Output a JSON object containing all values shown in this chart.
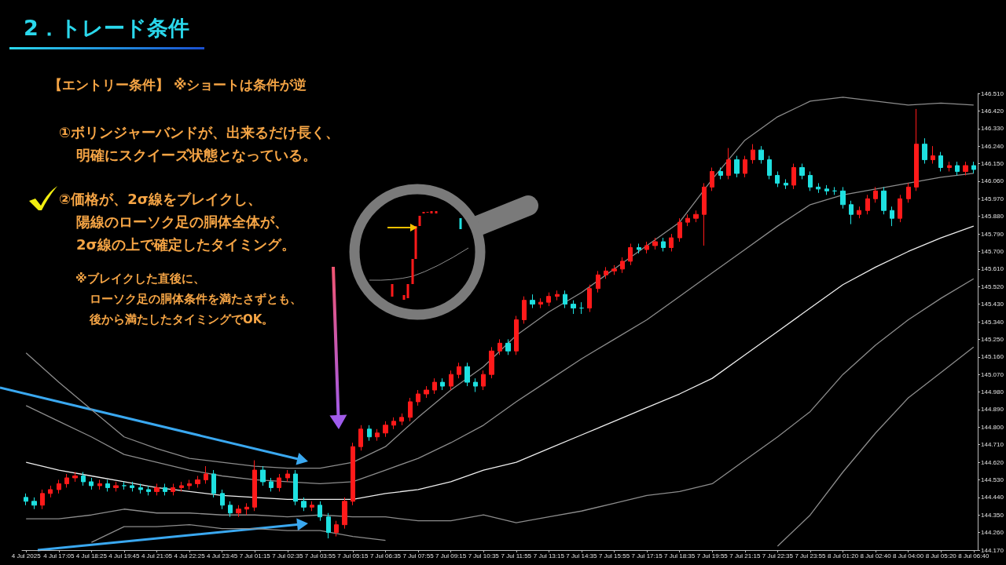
{
  "chart_data": {
    "type": "candlestick",
    "title": "2．トレード条件",
    "annotations": [
      "【エントリー条件】 ※ショートは条件が逆",
      "①ボリンジャーバンドが、出来るだけ長く、明確にスクイーズ状態となっている。",
      "②価格が、2σ線をブレイクし、陽線のローソク足の胴体全体が、2σ線の上で確定したタイミング。",
      "※ブレイクした直後に、ローソク足の胴体条件を満たさずとも、後から満たしたタイミングでOK。"
    ],
    "categories": [
      "4 Jul 2025",
      null,
      null,
      null,
      "4 Jul 17:05",
      null,
      null,
      null,
      "4 Jul 18:25",
      null,
      null,
      null,
      "4 Jul 19:45",
      null,
      null,
      null,
      "4 Jul 21:05",
      null,
      null,
      null,
      "4 Jul 22:25",
      null,
      null,
      null,
      "4 Jul 23:45",
      null,
      null,
      null,
      "7 Jul 01:15",
      null,
      null,
      null,
      "7 Jul 02:35",
      null,
      null,
      null,
      "7 Jul 03:55",
      null,
      null,
      null,
      "7 Jul 05:15",
      null,
      null,
      null,
      "7 Jul 06:35",
      null,
      null,
      null,
      "7 Jul 07:55",
      null,
      null,
      null,
      "7 Jul 09:15",
      null,
      null,
      null,
      "7 Jul 10:35",
      null,
      null,
      null,
      "7 Jul 11:55",
      null,
      null,
      null,
      "7 Jul 13:15",
      null,
      null,
      null,
      "7 Jul 14:35",
      null,
      null,
      null,
      "7 Jul 15:55",
      null,
      null,
      null,
      "7 Jul 17:15",
      null,
      null,
      null,
      "7 Jul 18:35",
      null,
      null,
      null,
      "7 Jul 19:55",
      null,
      null,
      null,
      "7 Jul 21:15",
      null,
      null,
      null,
      "7 Jul 22:35",
      null,
      null,
      null,
      "7 Jul 23:55",
      null,
      null,
      null,
      "8 Jul 01:20",
      null,
      null,
      null,
      "8 Jul 02:40",
      null,
      null,
      null,
      "8 Jul 04:00",
      null,
      null,
      null,
      "8 Jul 05:20",
      null,
      null,
      null,
      "8 Jul 06:40"
    ],
    "series": [
      {
        "ohlc": [
          [
            144.44,
            144.46,
            144.4,
            144.42
          ],
          [
            144.42,
            144.44,
            144.38,
            144.4
          ],
          [
            144.4,
            144.48,
            144.38,
            144.46
          ],
          [
            144.46,
            144.5,
            144.44,
            144.48
          ],
          [
            144.48,
            144.53,
            144.46,
            144.51
          ],
          [
            144.51,
            144.56,
            144.49,
            144.54
          ],
          [
            144.54,
            144.57,
            144.52,
            144.55
          ],
          [
            144.55,
            144.57,
            144.5,
            144.52
          ],
          [
            144.52,
            144.54,
            144.48,
            144.5
          ],
          [
            144.5,
            144.53,
            144.48,
            144.51
          ],
          [
            144.51,
            144.53,
            144.47,
            144.49
          ],
          [
            144.49,
            144.52,
            144.47,
            144.5
          ],
          [
            144.5,
            144.52,
            144.48,
            144.5
          ],
          [
            144.5,
            144.52,
            144.47,
            144.49
          ],
          [
            144.49,
            144.51,
            144.46,
            144.48
          ],
          [
            144.48,
            144.5,
            144.45,
            144.47
          ],
          [
            144.47,
            144.51,
            144.45,
            144.49
          ],
          [
            144.49,
            144.51,
            144.45,
            144.47
          ],
          [
            144.47,
            144.51,
            144.45,
            144.49
          ],
          [
            144.49,
            144.52,
            144.47,
            144.5
          ],
          [
            144.5,
            144.53,
            144.48,
            144.51
          ],
          [
            144.51,
            144.55,
            144.49,
            144.53
          ],
          [
            144.53,
            144.6,
            144.51,
            144.56
          ],
          [
            144.56,
            144.58,
            144.44,
            144.46
          ],
          [
            144.46,
            144.48,
            144.38,
            144.4
          ],
          [
            144.4,
            144.42,
            144.34,
            144.36
          ],
          [
            144.36,
            144.4,
            144.34,
            144.38
          ],
          [
            144.38,
            144.41,
            144.35,
            144.39
          ],
          [
            144.39,
            144.63,
            144.37,
            144.58
          ],
          [
            144.58,
            144.6,
            144.5,
            144.52
          ],
          [
            144.52,
            144.54,
            144.47,
            144.49
          ],
          [
            144.49,
            144.56,
            144.47,
            144.54
          ],
          [
            144.54,
            144.58,
            144.52,
            144.56
          ],
          [
            144.56,
            144.58,
            144.4,
            144.42
          ],
          [
            144.42,
            144.44,
            144.37,
            144.39
          ],
          [
            144.39,
            144.42,
            144.37,
            144.4
          ],
          [
            144.4,
            144.42,
            144.32,
            144.34
          ],
          [
            144.34,
            144.36,
            144.23,
            144.26
          ],
          [
            144.26,
            144.32,
            144.24,
            144.3
          ],
          [
            144.3,
            144.44,
            144.28,
            144.42
          ],
          [
            144.42,
            144.72,
            144.4,
            144.7
          ],
          [
            144.7,
            144.81,
            144.68,
            144.79
          ],
          [
            144.79,
            144.81,
            144.73,
            144.75
          ],
          [
            144.75,
            144.79,
            144.73,
            144.77
          ],
          [
            144.77,
            144.83,
            144.75,
            144.81
          ],
          [
            144.81,
            144.85,
            144.79,
            144.83
          ],
          [
            144.83,
            144.87,
            144.81,
            144.85
          ],
          [
            144.85,
            144.95,
            144.83,
            144.93
          ],
          [
            144.93,
            144.99,
            144.91,
            144.97
          ],
          [
            144.97,
            145.01,
            144.95,
            144.99
          ],
          [
            144.99,
            145.05,
            144.97,
            145.03
          ],
          [
            145.03,
            145.05,
            144.99,
            145.01
          ],
          [
            145.01,
            145.09,
            144.99,
            145.07
          ],
          [
            145.07,
            145.13,
            145.05,
            145.11
          ],
          [
            145.11,
            145.13,
            145.01,
            145.03
          ],
          [
            145.03,
            145.05,
            144.98,
            145.01
          ],
          [
            145.01,
            145.09,
            144.99,
            145.07
          ],
          [
            145.07,
            145.21,
            145.05,
            145.19
          ],
          [
            145.19,
            145.25,
            145.17,
            145.23
          ],
          [
            145.23,
            145.25,
            145.17,
            145.19
          ],
          [
            145.19,
            145.37,
            145.17,
            145.35
          ],
          [
            145.35,
            145.47,
            145.33,
            145.45
          ],
          [
            145.45,
            145.48,
            145.41,
            145.43
          ],
          [
            145.43,
            145.46,
            145.41,
            145.44
          ],
          [
            145.44,
            145.49,
            145.42,
            145.47
          ],
          [
            145.47,
            145.5,
            145.45,
            145.48
          ],
          [
            145.48,
            145.5,
            145.41,
            145.43
          ],
          [
            145.43,
            145.45,
            145.38,
            145.41
          ],
          [
            145.41,
            145.44,
            145.38,
            145.41
          ],
          [
            145.41,
            145.53,
            145.39,
            145.51
          ],
          [
            145.51,
            145.6,
            145.49,
            145.58
          ],
          [
            145.58,
            145.62,
            145.56,
            145.6
          ],
          [
            145.6,
            145.63,
            145.58,
            145.61
          ],
          [
            145.61,
            145.67,
            145.59,
            145.65
          ],
          [
            145.65,
            145.74,
            145.63,
            145.72
          ],
          [
            145.72,
            145.74,
            145.69,
            145.71
          ],
          [
            145.71,
            145.75,
            145.69,
            145.73
          ],
          [
            145.73,
            145.77,
            145.71,
            145.75
          ],
          [
            145.75,
            145.77,
            145.7,
            145.72
          ],
          [
            145.72,
            145.79,
            145.7,
            145.77
          ],
          [
            145.77,
            145.87,
            145.75,
            145.85
          ],
          [
            145.85,
            145.89,
            145.83,
            145.87
          ],
          [
            145.87,
            145.91,
            145.85,
            145.89
          ],
          [
            145.89,
            146.05,
            145.73,
            146.03
          ],
          [
            146.03,
            146.13,
            146.01,
            146.11
          ],
          [
            146.11,
            146.13,
            146.07,
            146.09
          ],
          [
            146.09,
            146.23,
            146.07,
            146.17
          ],
          [
            146.17,
            146.19,
            146.08,
            146.1
          ],
          [
            146.1,
            146.19,
            146.08,
            146.17
          ],
          [
            146.17,
            146.25,
            146.15,
            146.22
          ],
          [
            146.22,
            146.24,
            146.15,
            146.17
          ],
          [
            146.17,
            146.19,
            146.07,
            146.09
          ],
          [
            146.09,
            146.11,
            146.03,
            146.05
          ],
          [
            146.05,
            146.07,
            146.02,
            146.04
          ],
          [
            146.04,
            146.15,
            146.02,
            146.13
          ],
          [
            146.13,
            146.15,
            146.07,
            146.09
          ],
          [
            146.09,
            146.11,
            146.01,
            146.03
          ],
          [
            146.03,
            146.05,
            146.0,
            146.02
          ],
          [
            146.02,
            146.04,
            145.99,
            146.01
          ],
          [
            146.01,
            146.03,
            145.99,
            146.01
          ],
          [
            146.01,
            146.03,
            145.92,
            145.94
          ],
          [
            145.94,
            145.96,
            145.84,
            145.89
          ],
          [
            145.89,
            145.93,
            145.87,
            145.91
          ],
          [
            145.91,
            145.99,
            145.89,
            145.97
          ],
          [
            145.97,
            146.03,
            145.95,
            146.01
          ],
          [
            146.01,
            146.03,
            145.89,
            145.91
          ],
          [
            145.91,
            145.93,
            145.83,
            145.87
          ],
          [
            145.87,
            145.99,
            145.85,
            145.97
          ],
          [
            145.97,
            146.05,
            145.95,
            146.03
          ],
          [
            146.03,
            146.43,
            146.01,
            146.25
          ],
          [
            146.25,
            146.28,
            146.15,
            146.17
          ],
          [
            146.17,
            146.24,
            146.15,
            146.19
          ],
          [
            146.19,
            146.21,
            146.11,
            146.13
          ],
          [
            146.13,
            146.16,
            146.11,
            146.14
          ],
          [
            146.14,
            146.16,
            146.09,
            146.11
          ],
          [
            146.11,
            146.16,
            146.09,
            146.14
          ],
          [
            146.14,
            146.16,
            146.1,
            146.12
          ]
        ],
        "colors": [
          "#1ee0e0",
          "#1ee0e0",
          "#ff1a1a",
          "#ff1a1a",
          "#ff1a1a",
          "#ff1a1a",
          "#ff1a1a",
          "#1ee0e0",
          "#1ee0e0",
          "#ff1a1a",
          "#1ee0e0",
          "#ff1a1a",
          "#1ee0e0",
          "#1ee0e0",
          "#1ee0e0",
          "#1ee0e0",
          "#ff1a1a",
          "#1ee0e0",
          "#ff1a1a",
          "#ff1a1a",
          "#ff1a1a",
          "#ff1a1a",
          "#ff1a1a",
          "#1ee0e0",
          "#1ee0e0",
          "#1ee0e0",
          "#ff1a1a",
          "#ff1a1a",
          "#ff1a1a",
          "#1ee0e0",
          "#1ee0e0",
          "#ff1a1a",
          "#ff1a1a",
          "#1ee0e0",
          "#1ee0e0",
          "#ff1a1a",
          "#1ee0e0",
          "#1ee0e0",
          "#ff1a1a",
          "#ff1a1a",
          "#ff1a1a",
          "#ff1a1a",
          "#1ee0e0",
          "#ff1a1a",
          "#ff1a1a",
          "#ff1a1a",
          "#ff1a1a",
          "#ff1a1a",
          "#ff1a1a",
          "#ff1a1a",
          "#ff1a1a",
          "#1ee0e0",
          "#ff1a1a",
          "#ff1a1a",
          "#1ee0e0",
          "#1ee0e0",
          "#ff1a1a",
          "#ff1a1a",
          "#ff1a1a",
          "#1ee0e0",
          "#ff1a1a",
          "#ff1a1a",
          "#1ee0e0",
          "#ff1a1a",
          "#ff1a1a",
          "#ff1a1a",
          "#1ee0e0",
          "#1ee0e0",
          "#1ee0e0",
          "#ff1a1a",
          "#ff1a1a",
          "#ff1a1a",
          "#ff1a1a",
          "#ff1a1a",
          "#ff1a1a",
          "#1ee0e0",
          "#ff1a1a",
          "#ff1a1a",
          "#1ee0e0",
          "#ff1a1a",
          "#ff1a1a",
          "#ff1a1a",
          "#ff1a1a",
          "#ff1a1a",
          "#ff1a1a",
          "#1ee0e0",
          "#ff1a1a",
          "#1ee0e0",
          "#ff1a1a",
          "#ff1a1a",
          "#1ee0e0",
          "#1ee0e0",
          "#1ee0e0",
          "#1ee0e0",
          "#ff1a1a",
          "#1ee0e0",
          "#1ee0e0",
          "#1ee0e0",
          "#1ee0e0",
          "#1ee0e0",
          "#1ee0e0",
          "#1ee0e0",
          "#ff1a1a",
          "#ff1a1a",
          "#ff1a1a",
          "#1ee0e0",
          "#1ee0e0",
          "#ff1a1a",
          "#ff1a1a",
          "#ff1a1a",
          "#1ee0e0",
          "#ff1a1a",
          "#1ee0e0",
          "#ff1a1a",
          "#1ee0e0",
          "#ff1a1a",
          "#1ee0e0"
        ]
      },
      {
        "type": "line",
        "color": "#8c8c8c",
        "x": [
          "4 Jul 2025",
          "4 Jul 17:05",
          "4 Jul 18:25",
          "4 Jul 19:45",
          "4 Jul 21:05",
          "4 Jul 22:25",
          "4 Jul 23:45",
          "7 Jul 01:15",
          "7 Jul 02:35",
          "7 Jul 03:55",
          "7 Jul 05:15",
          "7 Jul 06:35",
          "7 Jul 07:55",
          "7 Jul 09:15",
          "7 Jul 10:35",
          "7 Jul 11:55",
          "7 Jul 13:15",
          "7 Jul 14:35",
          "7 Jul 15:55",
          "7 Jul 17:15",
          "7 Jul 18:35",
          "7 Jul 19:55",
          "7 Jul 21:15",
          "7 Jul 22:35",
          "7 Jul 23:55",
          "8 Jul 01:20",
          "8 Jul 02:40",
          "8 Jul 04:00",
          "8 Jul 05:20",
          "8 Jul 06:40"
        ],
        "values": [
          145.18,
          145.03,
          144.89,
          144.75,
          144.69,
          144.64,
          144.62,
          144.6,
          144.59,
          144.59,
          144.62,
          144.7,
          144.85,
          144.99,
          145.11,
          145.27,
          145.39,
          145.49,
          145.61,
          145.73,
          145.85,
          146.07,
          146.27,
          146.39,
          146.47,
          146.49,
          146.47,
          146.45,
          146.46,
          146.45
        ]
      },
      {
        "type": "line",
        "color": "#8c8c8c",
        "x": [
          "4 Jul 2025",
          "4 Jul 17:05",
          "4 Jul 18:25",
          "4 Jul 19:45",
          "4 Jul 21:05",
          "4 Jul 22:25",
          "4 Jul 23:45",
          "7 Jul 01:15",
          "7 Jul 02:35",
          "7 Jul 03:55",
          "7 Jul 05:15",
          "7 Jul 06:35",
          "7 Jul 07:55",
          "7 Jul 09:15",
          "7 Jul 10:35",
          "7 Jul 11:55",
          "7 Jul 13:15",
          "7 Jul 14:35",
          "7 Jul 15:55",
          "7 Jul 17:15",
          "7 Jul 18:35",
          "7 Jul 19:55",
          "7 Jul 21:15",
          "7 Jul 22:35",
          "7 Jul 23:55",
          "8 Jul 01:20",
          "8 Jul 02:40",
          "8 Jul 04:00",
          "8 Jul 05:20",
          "8 Jul 06:40"
        ],
        "values": [
          144.91,
          144.83,
          144.75,
          144.66,
          144.62,
          144.58,
          144.55,
          144.53,
          144.52,
          144.51,
          144.52,
          144.58,
          144.64,
          144.72,
          144.81,
          144.93,
          145.04,
          145.15,
          145.25,
          145.35,
          145.47,
          145.59,
          145.71,
          145.83,
          145.94,
          145.99,
          146.02,
          146.05,
          146.08,
          146.1
        ]
      },
      {
        "type": "line",
        "color": "#eeeeee",
        "x": [
          "4 Jul 2025",
          "4 Jul 17:05",
          "4 Jul 18:25",
          "4 Jul 19:45",
          "4 Jul 21:05",
          "4 Jul 22:25",
          "4 Jul 23:45",
          "7 Jul 01:15",
          "7 Jul 02:35",
          "7 Jul 03:55",
          "7 Jul 05:15",
          "7 Jul 06:35",
          "7 Jul 07:55",
          "7 Jul 09:15",
          "7 Jul 10:35",
          "7 Jul 11:55",
          "7 Jul 13:15",
          "7 Jul 14:35",
          "7 Jul 15:55",
          "7 Jul 17:15",
          "7 Jul 18:35",
          "7 Jul 19:55",
          "7 Jul 21:15",
          "7 Jul 22:35",
          "7 Jul 23:55",
          "8 Jul 01:20",
          "8 Jul 02:40",
          "8 Jul 04:00",
          "8 Jul 05:20",
          "8 Jul 06:40"
        ],
        "values": [
          144.62,
          144.58,
          144.55,
          144.52,
          144.49,
          144.47,
          144.45,
          144.44,
          144.43,
          144.43,
          144.43,
          144.46,
          144.48,
          144.52,
          144.58,
          144.62,
          144.69,
          144.76,
          144.83,
          144.9,
          144.97,
          145.05,
          145.17,
          145.29,
          145.41,
          145.53,
          145.62,
          145.7,
          145.77,
          145.83
        ]
      },
      {
        "type": "line",
        "color": "#8c8c8c",
        "x": [
          "4 Jul 2025",
          "4 Jul 17:05",
          "4 Jul 18:25",
          "4 Jul 19:45",
          "4 Jul 21:05",
          "4 Jul 22:25",
          "4 Jul 23:45",
          "7 Jul 01:15",
          "7 Jul 02:35",
          "7 Jul 03:55",
          "7 Jul 05:15",
          "7 Jul 06:35",
          "7 Jul 07:55",
          "7 Jul 09:15",
          "7 Jul 10:35",
          "7 Jul 11:55",
          "7 Jul 13:15",
          "7 Jul 14:35",
          "7 Jul 15:55",
          "7 Jul 17:15",
          "7 Jul 18:35",
          "7 Jul 19:55",
          "7 Jul 21:15",
          "7 Jul 22:35",
          "7 Jul 23:55",
          "8 Jul 01:20",
          "8 Jul 02:40",
          "8 Jul 04:00",
          "8 Jul 05:20",
          "8 Jul 06:40"
        ],
        "values": [
          144.33,
          144.33,
          144.35,
          144.38,
          144.36,
          144.36,
          144.35,
          144.35,
          144.34,
          144.35,
          144.34,
          144.34,
          144.32,
          144.32,
          144.35,
          144.31,
          144.34,
          144.37,
          144.41,
          144.45,
          144.47,
          144.51,
          144.63,
          144.75,
          144.88,
          145.07,
          145.22,
          145.35,
          145.46,
          145.56
        ]
      },
      {
        "type": "line",
        "color": "#8c8c8c",
        "x": [
          "4 Jul 2025",
          "4 Jul 17:05",
          "4 Jul 18:25",
          "4 Jul 19:45",
          "4 Jul 21:05",
          "4 Jul 22:25",
          "4 Jul 23:45",
          "7 Jul 01:15",
          "7 Jul 02:35",
          "7 Jul 03:55",
          "7 Jul 05:15",
          "7 Jul 06:35",
          "7 Jul 07:55",
          "7 Jul 09:15",
          "7 Jul 10:35",
          "7 Jul 11:55",
          "7 Jul 13:15",
          "7 Jul 14:35",
          "7 Jul 15:55",
          "7 Jul 17:15",
          "7 Jul 18:35",
          "7 Jul 19:55",
          "7 Jul 21:15",
          "7 Jul 22:35",
          "7 Jul 23:55",
          "8 Jul 01:20",
          "8 Jul 02:40",
          "8 Jul 04:00",
          "8 Jul 05:20",
          "8 Jul 06:40"
        ],
        "values": [
          null,
          null,
          144.21,
          144.29,
          144.29,
          144.3,
          144.28,
          144.28,
          144.27,
          144.27,
          144.24,
          144.22,
          null,
          null,
          null,
          null,
          null,
          null,
          null,
          null,
          null,
          null,
          null,
          144.19,
          144.35,
          144.57,
          144.77,
          144.95,
          145.08,
          145.21
        ]
      }
    ],
    "ylim": [
      144.17,
      146.51
    ],
    "yticks": [
      {
        "value": 144.17,
        "label": "144.170"
      },
      {
        "value": 144.26,
        "label": "144.260"
      },
      {
        "value": 144.35,
        "label": "144.350"
      },
      {
        "value": 144.44,
        "label": "144.440"
      },
      {
        "value": 144.53,
        "label": "144.530"
      },
      {
        "value": 144.62,
        "label": "144.620"
      },
      {
        "value": 144.71,
        "label": "144.710"
      },
      {
        "value": 144.8,
        "label": "144.800"
      },
      {
        "value": 144.89,
        "label": "144.890"
      },
      {
        "value": 144.98,
        "label": "144.980"
      },
      {
        "value": 145.07,
        "label": "145.070"
      },
      {
        "value": 145.16,
        "label": "145.160"
      },
      {
        "value": 145.25,
        "label": "145.250"
      },
      {
        "value": 145.34,
        "label": "145.340"
      },
      {
        "value": 145.43,
        "label": "145.430"
      },
      {
        "value": 145.52,
        "label": "145.520"
      },
      {
        "value": 145.61,
        "label": "145.610"
      },
      {
        "value": 145.7,
        "label": "145.700"
      },
      {
        "value": 145.79,
        "label": "145.790"
      },
      {
        "value": 145.88,
        "label": "145.880"
      },
      {
        "value": 145.97,
        "label": "145.970"
      },
      {
        "value": 146.06,
        "label": "146.060"
      },
      {
        "value": 146.15,
        "label": "146.150"
      },
      {
        "value": 146.24,
        "label": "146.240"
      },
      {
        "value": 146.33,
        "label": "146.330"
      },
      {
        "value": 146.42,
        "label": "146.420"
      },
      {
        "value": 146.51,
        "label": "146.510"
      }
    ],
    "marker": "none",
    "grid": false
  }
}
